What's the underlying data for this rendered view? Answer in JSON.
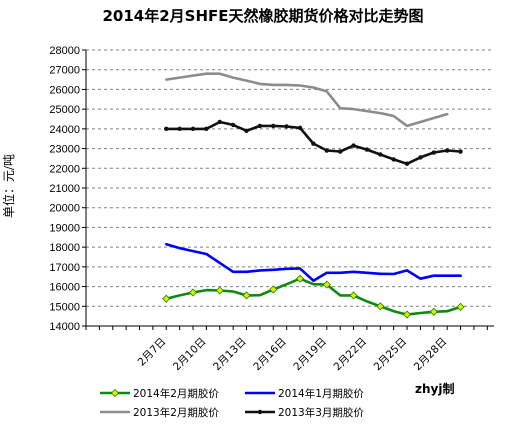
{
  "chart_data": {
    "type": "line",
    "title": "2014年2月SHFE天然橡胶期货价格对比走势图",
    "ylabel": "单位：元/吨",
    "ylim": [
      14000,
      28000
    ],
    "yticks": [
      14000,
      15000,
      16000,
      17000,
      18000,
      19000,
      20000,
      21000,
      22000,
      23000,
      24000,
      25000,
      26000,
      27000,
      28000
    ],
    "xlim": [
      1,
      31.5
    ],
    "xticks": [
      {
        "x": 7,
        "label": "2月7日"
      },
      {
        "x": 10,
        "label": "2月10日"
      },
      {
        "x": 13,
        "label": "2月13日"
      },
      {
        "x": 16,
        "label": "2月16日"
      },
      {
        "x": 19,
        "label": "2月19日"
      },
      {
        "x": 22,
        "label": "2月22日"
      },
      {
        "x": 25,
        "label": "2月25日"
      },
      {
        "x": 28,
        "label": "2月28日"
      }
    ],
    "grid": true,
    "legend_position": "bottom",
    "credit": "zhyj制",
    "series": [
      {
        "name": "2014年2月期胶价",
        "color": "#0e8a0e",
        "marker": "diamond",
        "marker_color": "#e8e800",
        "x": [
          7,
          8,
          9,
          10,
          11,
          12,
          13,
          14,
          15,
          16,
          17,
          18,
          19,
          20,
          21,
          22,
          23,
          24,
          25,
          26,
          27,
          28,
          29
        ],
        "y": [
          15380,
          15550,
          15700,
          15820,
          15800,
          15750,
          15550,
          15560,
          15850,
          16120,
          16400,
          16120,
          16100,
          15550,
          15550,
          15250,
          15000,
          14750,
          14580,
          14660,
          14720,
          14750,
          14970
        ]
      },
      {
        "name": "2014年1月期胶价",
        "color": "#0000ff",
        "marker": "none",
        "x": [
          7,
          8,
          9,
          10,
          11,
          12,
          13,
          14,
          15,
          16,
          17,
          18,
          19,
          20,
          21,
          22,
          23,
          24,
          25,
          26,
          27,
          28,
          29
        ],
        "y": [
          18150,
          17950,
          17800,
          17650,
          17200,
          16750,
          16750,
          16820,
          16850,
          16900,
          16920,
          16300,
          16700,
          16700,
          16750,
          16700,
          16650,
          16640,
          16820,
          16400,
          16550,
          16550,
          16550
        ]
      },
      {
        "name": "2013年2月期胶价",
        "color": "#8c8c8c",
        "marker": "none",
        "x": [
          7,
          8,
          9,
          10,
          11,
          12,
          13,
          14,
          15,
          16,
          17,
          18,
          19,
          20,
          21,
          22,
          23,
          24,
          25,
          26,
          27,
          28
        ],
        "y": [
          26500,
          26600,
          26700,
          26800,
          26800,
          26600,
          26450,
          26280,
          26230,
          26230,
          26200,
          26100,
          25900,
          25050,
          25000,
          24900,
          24800,
          24650,
          24150,
          24350,
          24550,
          24750
        ]
      },
      {
        "name": "2013年3月期胶价",
        "color": "#111111",
        "marker": "circle",
        "x": [
          7,
          8,
          9,
          10,
          11,
          12,
          13,
          14,
          15,
          16,
          17,
          18,
          19,
          20,
          21,
          22,
          23,
          24,
          25,
          26,
          27,
          28,
          29
        ],
        "y": [
          24000,
          24000,
          24000,
          24000,
          24350,
          24200,
          23900,
          24150,
          24150,
          24120,
          24050,
          23250,
          22900,
          22850,
          23150,
          22950,
          22700,
          22450,
          22230,
          22550,
          22800,
          22900,
          22850
        ]
      }
    ]
  }
}
